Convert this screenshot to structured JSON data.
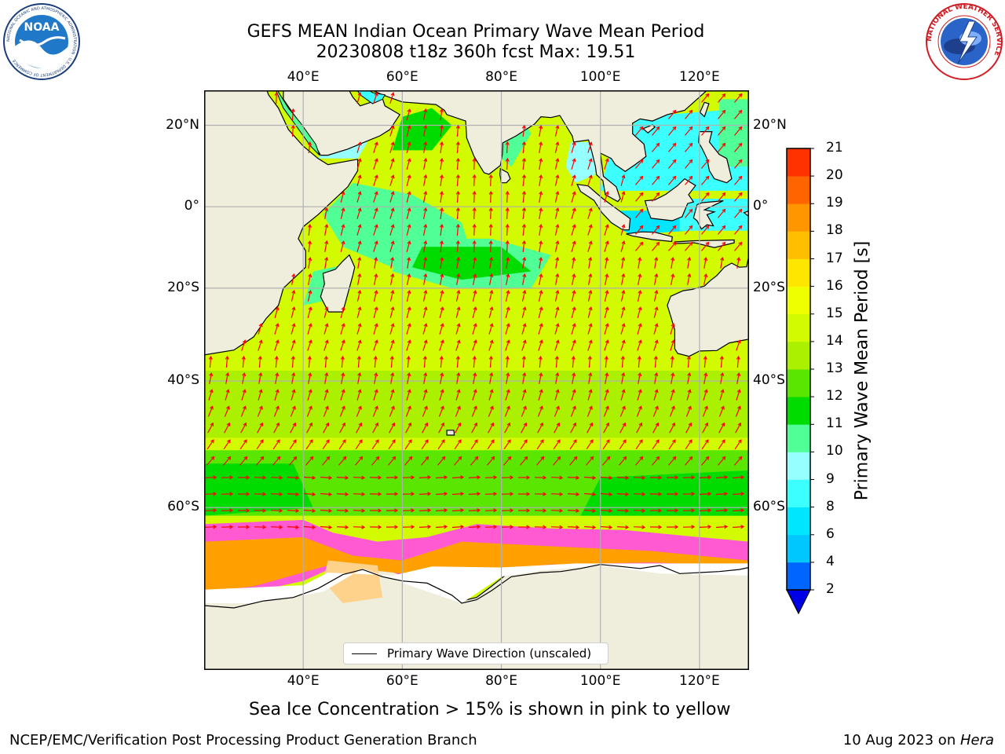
{
  "header": {
    "title_line1": "GEFS MEAN Indian Ocean Primary Wave Mean Period",
    "title_line2": "20230808 t18z 360h fcst   Max: 19.51"
  },
  "logos": {
    "noaa_text": "NOAA",
    "noaa_ring_text": "NATIONAL OCEANIC AND ATMOSPHERIC ADMINISTRATION · U.S. DEPARTMENT OF COMMERCE",
    "nws_ring_text": "NATIONAL WEATHER SERVICE"
  },
  "map": {
    "lon_range": [
      20,
      130
    ],
    "lat_range": [
      -75,
      28
    ],
    "lon_ticks": [
      "40°E",
      "60°E",
      "80°E",
      "100°E",
      "120°E"
    ],
    "lat_ticks": [
      "20°N",
      "0°",
      "20°S",
      "40°S",
      "60°S"
    ],
    "gridlines": true,
    "land_color": "#efeedd",
    "legend_label": "Primary Wave Direction (unscaled)",
    "legend_position": "bottom-center"
  },
  "colorbar": {
    "label": "Primary Wave Mean Period [s]",
    "tick_labels": [
      "2",
      "4",
      "6",
      "8",
      "9",
      "10",
      "11",
      "12",
      "13",
      "14",
      "15",
      "16",
      "17",
      "18",
      "19",
      "20",
      "21"
    ],
    "bin_colors": [
      "#0064ff",
      "#00c8ff",
      "#00e6ff",
      "#3cffff",
      "#96ffff",
      "#50ff96",
      "#00dc00",
      "#5ae600",
      "#aaf000",
      "#d2fa00",
      "#f0ff00",
      "#ffe600",
      "#ffbe00",
      "#ff9600",
      "#ff6400",
      "#ff3200"
    ],
    "under_color": "#0000e6",
    "over_color": "#ff0000"
  },
  "caption": "Sea Ice Concentration > 15% is shown in pink to yellow",
  "footer": {
    "left": "NCEP/EMC/Verification Post Processing Product Generation Branch",
    "right_date": "10 Aug 2023 on ",
    "right_host": "Hera"
  }
}
